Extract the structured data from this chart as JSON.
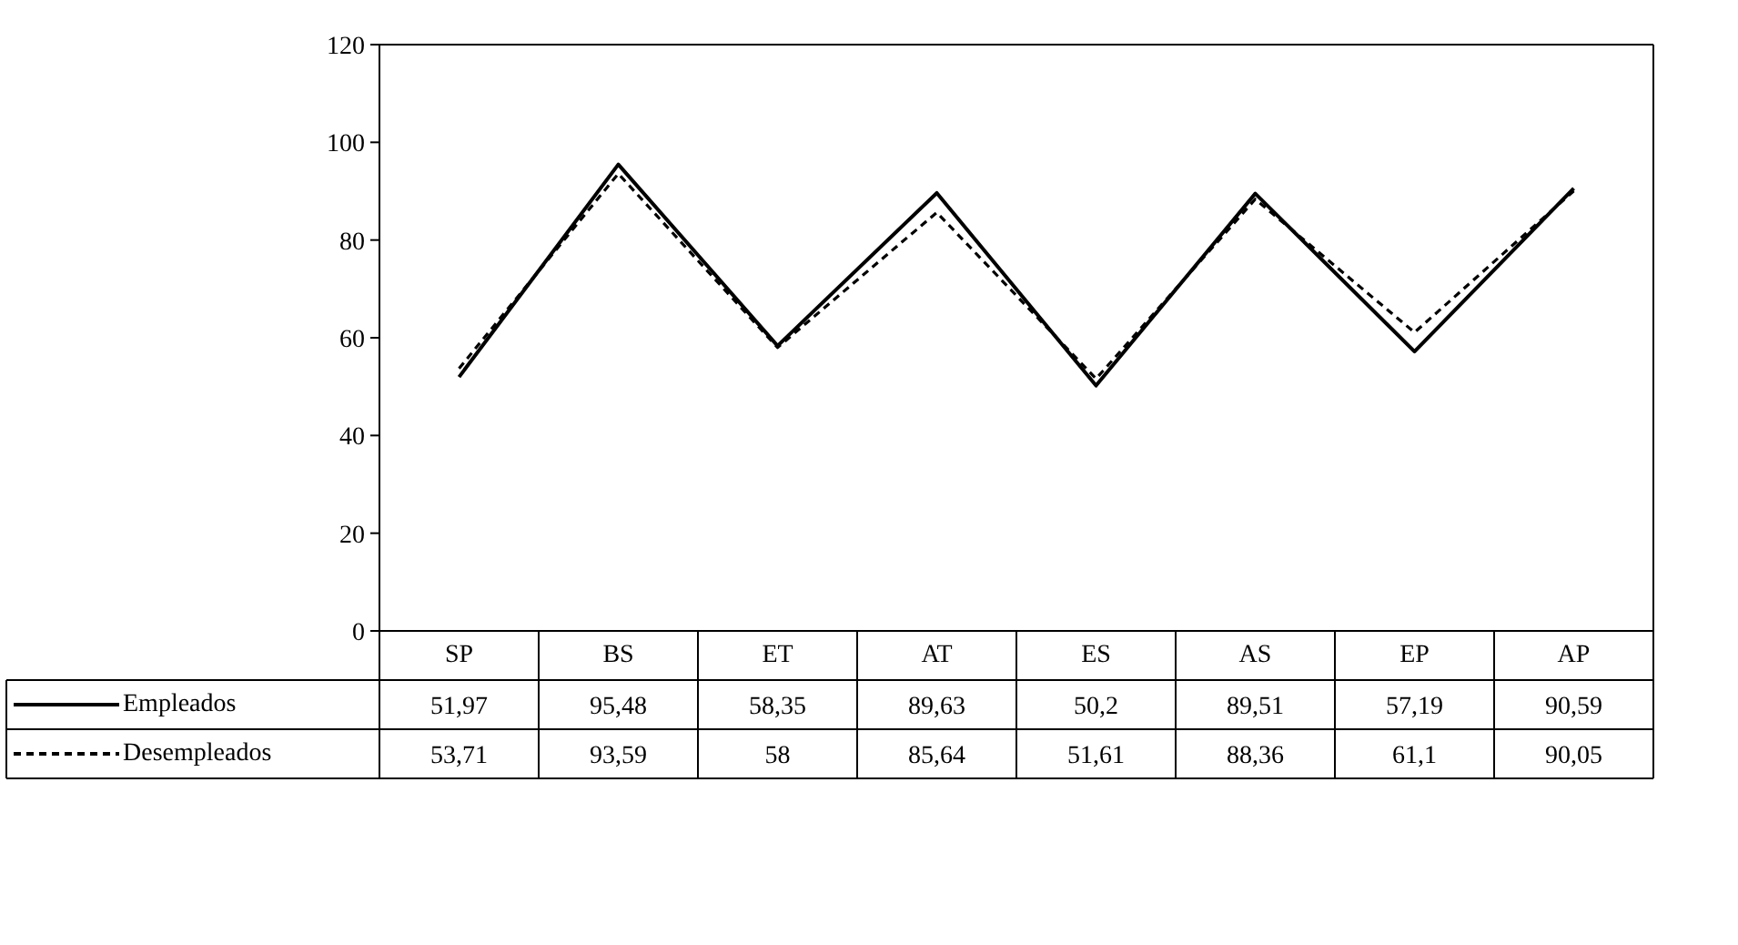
{
  "chart_data": {
    "type": "line",
    "categories": [
      "SP",
      "BS",
      "ET",
      "AT",
      "ES",
      "AS",
      "EP",
      "AP"
    ],
    "series": [
      {
        "name": "Empleados",
        "color": "#000000",
        "line_style": "solid",
        "values": [
          51.97,
          95.48,
          58.35,
          89.63,
          50.2,
          89.51,
          57.19,
          90.59
        ],
        "value_labels": [
          "51,97",
          "95,48",
          "58,35",
          "89,63",
          "50,2",
          "89,51",
          "57,19",
          "90,59"
        ]
      },
      {
        "name": "Desempleados",
        "color": "#000000",
        "line_style": "dashed",
        "values": [
          53.71,
          93.59,
          58,
          85.64,
          51.61,
          88.36,
          61.1,
          90.05
        ],
        "value_labels": [
          "53,71",
          "93,59",
          "58",
          "85,64",
          "51,61",
          "88,36",
          "61,1",
          "90,05"
        ]
      }
    ],
    "ylim": [
      0,
      120
    ],
    "yticks": [
      0,
      20,
      40,
      60,
      80,
      100,
      120
    ],
    "grid": false,
    "legend": "bottom left",
    "marker": "none"
  }
}
